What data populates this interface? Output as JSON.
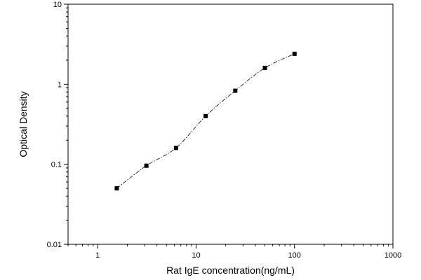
{
  "chart_data": {
    "type": "scatter",
    "xlabel": "Rat IgE concentration(ng/mL)",
    "ylabel": "Optical Density",
    "x_scale": "log",
    "y_scale": "log",
    "xlim": [
      0.5,
      1000
    ],
    "ylim": [
      0.01,
      10
    ],
    "x_tick_labels": [
      "1",
      "10",
      "100",
      "1000"
    ],
    "y_tick_labels": [
      "0.01",
      "0.1",
      "1",
      "10"
    ],
    "grid": false,
    "fit_curve": true,
    "series": [
      {
        "x": [
          1.5625,
          3.125,
          6.25,
          12.5,
          25,
          50,
          100
        ],
        "y": [
          0.05,
          0.096,
          0.16,
          0.4,
          0.83,
          1.6,
          2.4
        ],
        "marker": "square",
        "color": "#000000"
      }
    ]
  }
}
